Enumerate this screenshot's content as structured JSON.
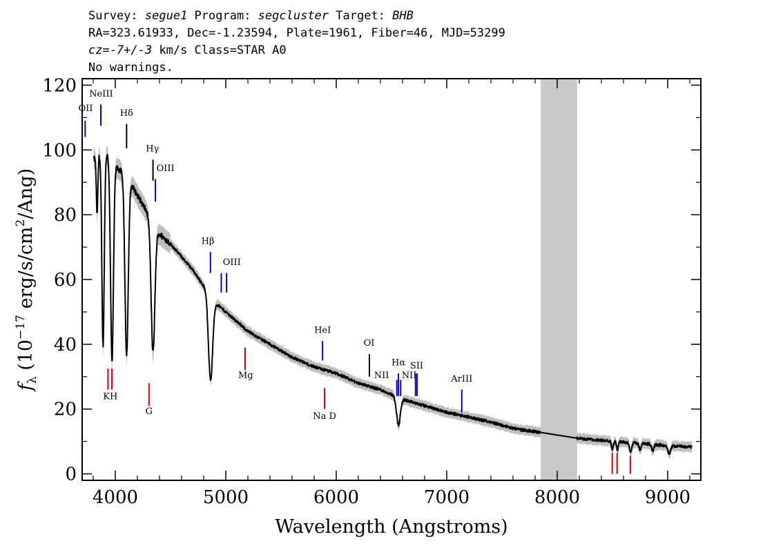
{
  "header": {
    "line1": {
      "survey_label": "Survey: ",
      "survey": "segue1",
      "program_label": " Program: ",
      "program": "segcluster",
      "target_label": " Target: ",
      "target": "BHB"
    },
    "line2": "RA=323.61933, Dec=-1.23594, Plate=1961, Fiber=46, MJD=53299",
    "line3": {
      "cz": "cz=-7+/-3",
      "rest": " km/s Class=STAR A0"
    },
    "line4": "No warnings."
  },
  "chart_data": {
    "type": "line",
    "xlabel": "Wavelength (Angstroms)",
    "ylabel": "f_λ (10^-17 erg/s/cm^2/Ang)",
    "ylabel_parts": {
      "f": "f",
      "sub": "λ",
      "a": " (10",
      "sup1": "−17",
      "b": " erg/s/cm",
      "sup2": "2",
      "c": "/Ang)"
    },
    "xlim": [
      3700,
      9300
    ],
    "ylim": [
      -2,
      122
    ],
    "xticks": [
      4000,
      5000,
      6000,
      7000,
      8000,
      9000
    ],
    "yticks": [
      0,
      20,
      40,
      60,
      80,
      100,
      120
    ],
    "masked_region": [
      7850,
      8180
    ],
    "continuum": [
      [
        3800,
        97
      ],
      [
        3900,
        100
      ],
      [
        4000,
        95
      ],
      [
        4100,
        92
      ],
      [
        4200,
        86
      ],
      [
        4300,
        80
      ],
      [
        4400,
        74
      ],
      [
        4500,
        71
      ],
      [
        4600,
        67
      ],
      [
        4700,
        63
      ],
      [
        4800,
        58
      ],
      [
        4900,
        53
      ],
      [
        5000,
        50
      ],
      [
        5200,
        44
      ],
      [
        5400,
        40
      ],
      [
        5600,
        36
      ],
      [
        5800,
        33
      ],
      [
        6000,
        31
      ],
      [
        6200,
        28
      ],
      [
        6400,
        26
      ],
      [
        6600,
        23
      ],
      [
        6800,
        21
      ],
      [
        7000,
        19
      ],
      [
        7200,
        17.5
      ],
      [
        7400,
        16
      ],
      [
        7600,
        14
      ],
      [
        7850,
        12.8
      ],
      [
        8180,
        11
      ],
      [
        8400,
        10.3
      ],
      [
        8600,
        9.8
      ],
      [
        8800,
        9.3
      ],
      [
        9000,
        8.7
      ],
      [
        9220,
        8.3
      ]
    ],
    "absorption": [
      {
        "center": 3835,
        "depth": 18,
        "width": 7
      },
      {
        "center": 3889,
        "depth": 60,
        "width": 11
      },
      {
        "center": 3970,
        "depth": 62,
        "width": 13
      },
      {
        "center": 4102,
        "depth": 55,
        "width": 15
      },
      {
        "center": 4341,
        "depth": 40,
        "width": 17
      },
      {
        "center": 4862,
        "depth": 26,
        "width": 19
      },
      {
        "center": 6563,
        "depth": 8.5,
        "width": 17
      },
      {
        "center": 8500,
        "depth": 2.5,
        "width": 8
      },
      {
        "center": 8545,
        "depth": 2.5,
        "width": 8
      },
      {
        "center": 8665,
        "depth": 3,
        "width": 10
      },
      {
        "center": 8750,
        "depth": 2,
        "width": 10
      },
      {
        "center": 8865,
        "depth": 2,
        "width": 10
      },
      {
        "center": 9015,
        "depth": 2.5,
        "width": 12
      }
    ],
    "emission_lines": [
      {
        "label": "OII",
        "x": 3727,
        "y0": 104,
        "y1": 109,
        "lx": 3732,
        "ly": 112,
        "color": "#0000cc"
      },
      {
        "label": "NeIII",
        "x": 3869,
        "y0": 107.5,
        "y1": 114,
        "lx": 3871,
        "ly": 116.5,
        "color": "#0000cc"
      },
      {
        "label": "Hδ",
        "x": 4102,
        "y0": 100.5,
        "y1": 108,
        "lx": 4102,
        "ly": 110.5,
        "color": "#000000"
      },
      {
        "label": "Hγ",
        "x": 4341,
        "y0": 90.5,
        "y1": 97,
        "lx": 4336,
        "ly": 99.5,
        "color": "#000000"
      },
      {
        "label": "OIII",
        "x": 4363,
        "y0": 84,
        "y1": 91,
        "lx": 4454,
        "ly": 93.5,
        "color": "#0000cc"
      },
      {
        "label": "Hβ",
        "x": 4861,
        "y0": 62,
        "y1": 68.5,
        "lx": 4838,
        "ly": 71,
        "color": "#0000cc"
      },
      {
        "label": "OIII",
        "x": 4959,
        "y0": 56,
        "y1": 62,
        "lx": 5055,
        "ly": 64.5,
        "color": "#0000cc"
      },
      {
        "label": "OIII",
        "x": 5007,
        "y0": 56,
        "y1": 62,
        "lx": null,
        "ly": null,
        "color": "#0000cc"
      },
      {
        "label": "HeI",
        "x": 5876,
        "y0": 35,
        "y1": 41,
        "lx": 5876,
        "ly": 43.5,
        "color": "#0000cc"
      },
      {
        "label": "OI",
        "x": 6300,
        "y0": 30,
        "y1": 37,
        "lx": 6297,
        "ly": 39.5,
        "color": "#000000"
      },
      {
        "label": "NII",
        "x": 6548,
        "y0": 24,
        "y1": 29,
        "lx": 6410,
        "ly": 29.5,
        "color": "#0000cc"
      },
      {
        "label": "Hα",
        "x": 6563,
        "y0": 24,
        "y1": 31,
        "lx": 6563,
        "ly": 33.5,
        "color": "#0000cc"
      },
      {
        "label": "NII",
        "x": 6583,
        "y0": 24,
        "y1": 29,
        "lx": 6660,
        "ly": 29.5,
        "color": "#0000cc"
      },
      {
        "label": "SII",
        "x": 6717,
        "y0": 24,
        "y1": 31,
        "lx": 6728,
        "ly": 32.5,
        "color": "#0000cc"
      },
      {
        "label": "SII",
        "x": 6731,
        "y0": 24,
        "y1": 31,
        "lx": null,
        "ly": null,
        "color": "#0000cc"
      },
      {
        "label": "ArIII",
        "x": 7136,
        "y0": 19,
        "y1": 26,
        "lx": 7136,
        "ly": 28.5,
        "color": "#0000cc"
      }
    ],
    "absorption_markers": [
      {
        "label": "KH",
        "x": 3934,
        "y0": 26,
        "y1": 32.5,
        "lx": 3955,
        "ly": 23,
        "color": "#cc0000"
      },
      {
        "label": "",
        "x": 3969,
        "y0": 26,
        "y1": 32.5,
        "lx": null,
        "ly": null,
        "color": "#cc0000"
      },
      {
        "label": "G",
        "x": 4305,
        "y0": 21,
        "y1": 28,
        "lx": 4305,
        "ly": 18.5,
        "color": "#cc0000"
      },
      {
        "label": "Mg",
        "x": 5175,
        "y0": 32,
        "y1": 39,
        "lx": 5180,
        "ly": 29.5,
        "color": "#cc0000"
      },
      {
        "label": "Na D",
        "x": 5894,
        "y0": 20,
        "y1": 26.5,
        "lx": 5894,
        "ly": 17,
        "color": "#cc0000"
      },
      {
        "label": "",
        "x": 8498,
        "y0": 0,
        "y1": 6.5,
        "lx": null,
        "ly": null,
        "color": "#cc0000"
      },
      {
        "label": "",
        "x": 8542,
        "y0": 0,
        "y1": 6.5,
        "lx": null,
        "ly": null,
        "color": "#cc0000"
      },
      {
        "label": "",
        "x": 8662,
        "y0": 0,
        "y1": 5.5,
        "lx": null,
        "ly": null,
        "color": "#cc0000"
      }
    ],
    "colors": {
      "spectrum": "#000000",
      "error_band": "#bdbdbd",
      "mask": "#c8c8c8",
      "blue_marker": "#0000cc",
      "red_marker": "#cc0000"
    }
  }
}
